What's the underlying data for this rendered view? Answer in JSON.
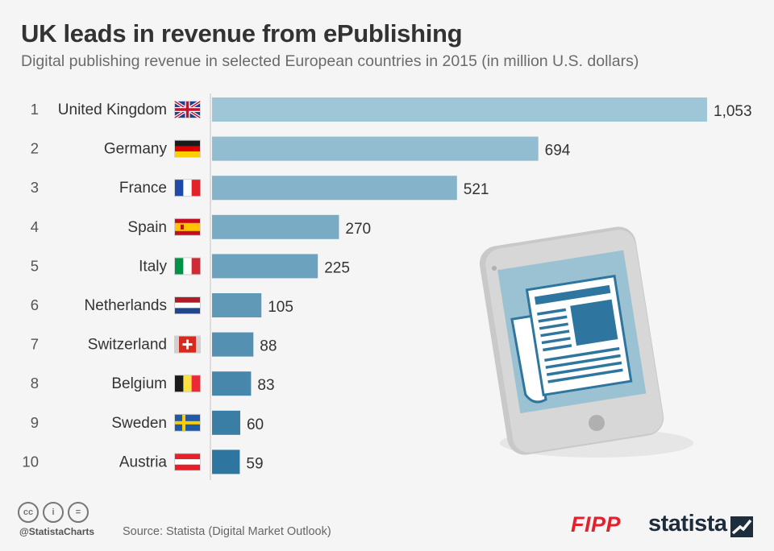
{
  "header": {
    "title": "UK leads in revenue from ePublishing",
    "subtitle": "Digital publishing revenue in selected European countries in 2015 (in million U.S. dollars)"
  },
  "chart_data": {
    "type": "bar",
    "orientation": "horizontal",
    "title": "UK leads in revenue from ePublishing",
    "subtitle": "Digital publishing revenue in selected European countries in 2015 (in million U.S. dollars)",
    "ranks": [
      "1",
      "2",
      "3",
      "4",
      "5",
      "6",
      "7",
      "8",
      "9",
      "10"
    ],
    "categories": [
      "United Kingdom",
      "Germany",
      "France",
      "Spain",
      "Italy",
      "Netherlands",
      "Switzerland",
      "Belgium",
      "Sweden",
      "Austria"
    ],
    "flags": [
      "uk-flag-icon",
      "germany-flag-icon",
      "france-flag-icon",
      "spain-flag-icon",
      "italy-flag-icon",
      "netherlands-flag-icon",
      "switzerland-flag-icon",
      "belgium-flag-icon",
      "sweden-flag-icon",
      "austria-flag-icon"
    ],
    "values": [
      1053,
      694,
      521,
      270,
      225,
      105,
      88,
      83,
      60,
      59
    ],
    "value_labels": [
      "1,053",
      "694",
      "521",
      "270",
      "225",
      "105",
      "88",
      "83",
      "60",
      "59"
    ],
    "xlim": [
      0,
      1053
    ],
    "grid": false,
    "colors": {
      "bar_top": "#9ec6d6",
      "bar_bottom": "#2e75a0"
    }
  },
  "illustration": {
    "icon": "tablet-newspaper-icon"
  },
  "footer": {
    "license_icons": [
      "cc-icon",
      "by-icon",
      "nd-icon"
    ],
    "license_glyphs": [
      "cc",
      "i",
      "="
    ],
    "handle": "@StatistaCharts",
    "source": "Source: Statista (Digital Market Outlook)",
    "brand1": "FIPP",
    "brand2": "statista"
  }
}
